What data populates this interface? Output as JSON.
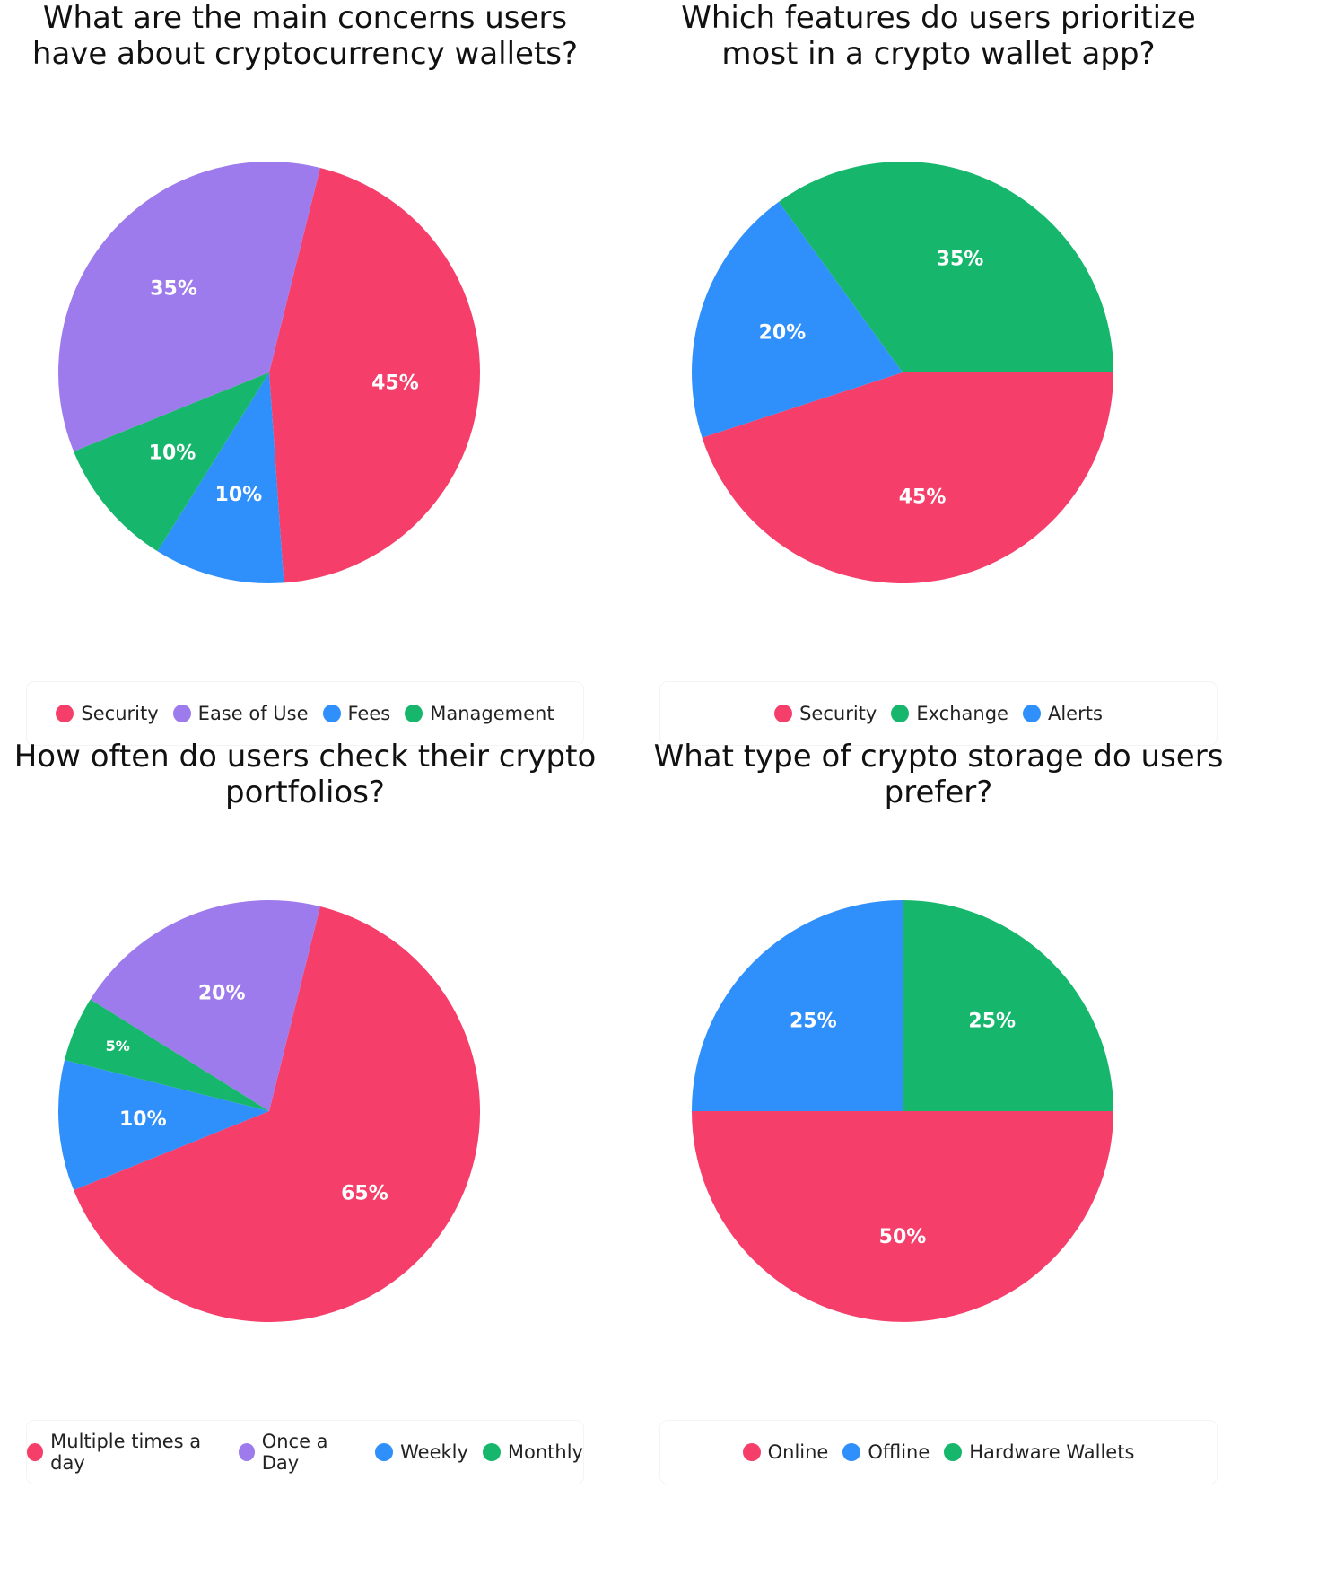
{
  "charts": [
    {
      "title": "What are the main concerns users have about cryptocurrency wallets?",
      "chart_data": {
        "type": "pie",
        "categories": [
          "Security",
          "Ease of Use",
          "Fees",
          "Management"
        ],
        "values": [
          45,
          35,
          10,
          10
        ],
        "labels": [
          "45%",
          "35%",
          "10%",
          "10%"
        ],
        "colors": [
          "#F53E6A",
          "#9D7BEC",
          "#2F8FFB",
          "#16B76C"
        ],
        "legend": "bottom",
        "start_angle_deg": -76,
        "order": [
          0,
          1,
          3,
          2
        ]
      }
    },
    {
      "title": "Which features do users prioritize most in a crypto wallet app?",
      "chart_data": {
        "type": "pie",
        "categories": [
          "Security",
          "Exchange",
          "Alerts"
        ],
        "values": [
          45,
          35,
          20
        ],
        "labels": [
          "45%",
          "35%",
          "20%"
        ],
        "colors": [
          "#F53E6A",
          "#16B76C",
          "#2F8FFB"
        ],
        "legend": "bottom",
        "start_angle_deg": 0,
        "order": [
          0,
          1,
          2
        ]
      }
    },
    {
      "title": "How often do users check their crypto portfolios?",
      "chart_data": {
        "type": "pie",
        "categories": [
          "Multiple times a day",
          "Once a Day",
          "Weekly",
          "Monthly"
        ],
        "values": [
          65,
          20,
          10,
          5
        ],
        "labels": [
          "65%",
          "20%",
          "10%",
          "5%"
        ],
        "colors": [
          "#F53E6A",
          "#9D7BEC",
          "#2F8FFB",
          "#16B76C"
        ],
        "legend": "bottom",
        "start_angle_deg": -76,
        "order": [
          0,
          1,
          3,
          2
        ]
      }
    },
    {
      "title": "What type of crypto storage do users prefer?",
      "chart_data": {
        "type": "pie",
        "categories": [
          "Online",
          "Offline",
          "Hardware Wallets"
        ],
        "values": [
          50,
          25,
          25
        ],
        "labels": [
          "50%",
          "25%",
          "25%"
        ],
        "colors": [
          "#F53E6A",
          "#2F8FFB",
          "#16B76C"
        ],
        "legend": "bottom",
        "start_angle_deg": 0,
        "order": [
          0,
          2,
          1
        ]
      }
    }
  ]
}
